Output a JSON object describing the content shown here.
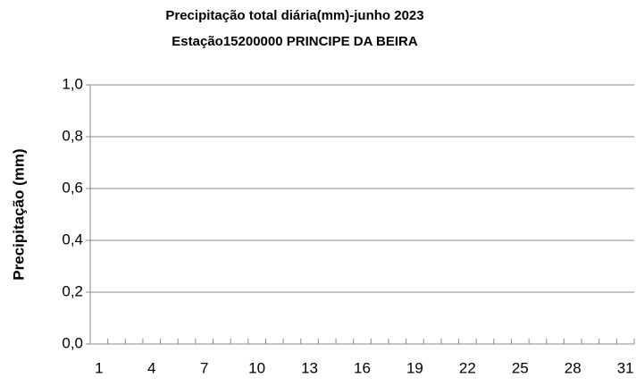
{
  "chart_data": {
    "type": "bar",
    "title": "Precipitação total diária(mm)-junho 2023",
    "subtitle": "Estação15200000 PRINCIPE DA BEIRA",
    "y_label": "Precipitação (mm)",
    "categories": [
      "1",
      null,
      null,
      "4",
      null,
      null,
      "7",
      null,
      null,
      "10",
      null,
      null,
      "13",
      null,
      null,
      "16",
      null,
      null,
      "19",
      null,
      null,
      "22",
      null,
      null,
      "25",
      null,
      null,
      "28",
      null,
      null,
      "31"
    ],
    "values": [
      0,
      0,
      0,
      0,
      0,
      0,
      0,
      0,
      0,
      0,
      0,
      0,
      0,
      0,
      0,
      0,
      0,
      0,
      0,
      0,
      0,
      0,
      0,
      0,
      0,
      0,
      0,
      0,
      0,
      0,
      0
    ],
    "color": "#4472c4",
    "ylim": [
      0,
      1
    ],
    "yticks": [
      {
        "value": 0,
        "label": "0,0"
      },
      {
        "value": 0.2,
        "label": "0,2"
      },
      {
        "value": 0.4,
        "label": "0,4"
      },
      {
        "value": 0.6,
        "label": "0,6"
      },
      {
        "value": 0.8,
        "label": "0,8"
      },
      {
        "value": 1,
        "label": "1,0"
      }
    ],
    "grid": true
  }
}
